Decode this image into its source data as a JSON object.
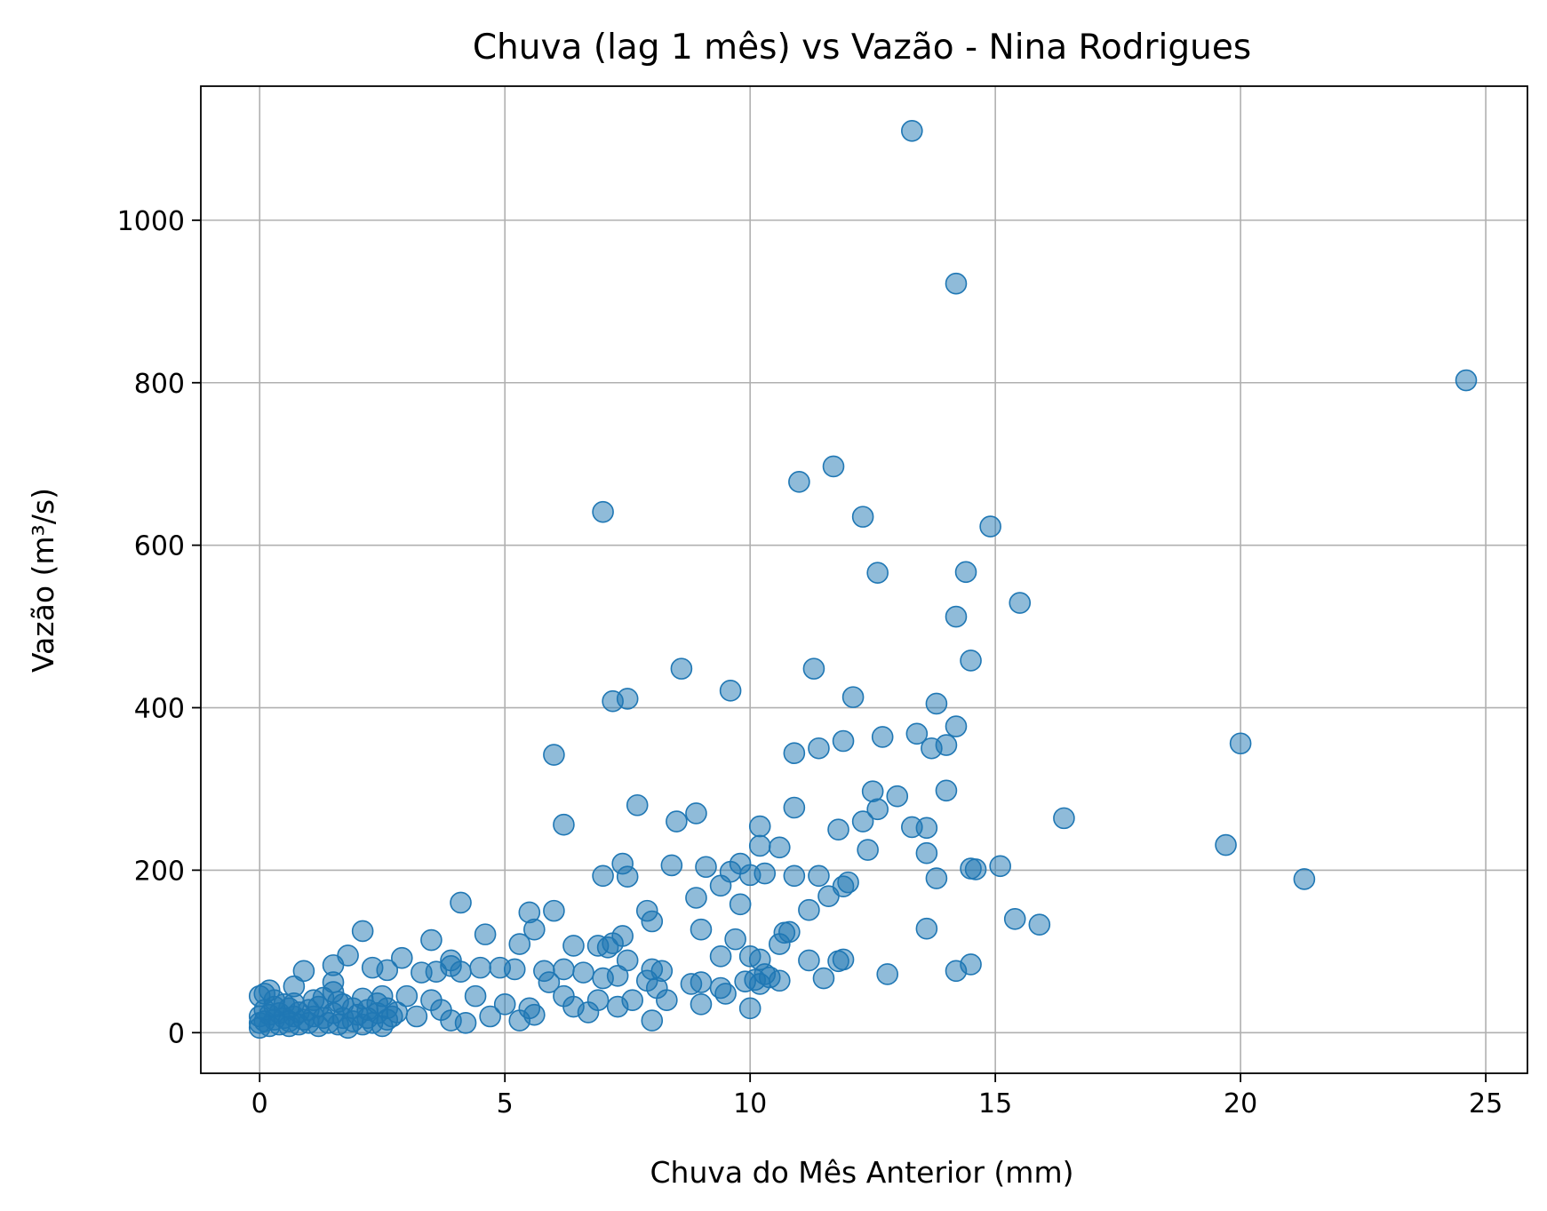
{
  "chart_data": {
    "type": "scatter",
    "title": "Chuva (lag 1 mês) vs Vazão - Nina Rodrigues",
    "xlabel": "Chuva do Mês Anterior (mm)",
    "ylabel": "Vazão (m³/s)",
    "xlim": [
      -1.2,
      25.85
    ],
    "ylim": [
      -50,
      1165
    ],
    "xticks": [
      0,
      5,
      10,
      15,
      20,
      25
    ],
    "yticks": [
      0,
      200,
      400,
      600,
      800,
      1000
    ],
    "xtick_labels": [
      "0",
      "5",
      "10",
      "15",
      "20",
      "25"
    ],
    "ytick_labels": [
      "0",
      "200",
      "400",
      "600",
      "800",
      "1000"
    ],
    "grid": true,
    "color": "#1f77b4",
    "points": [
      [
        13.3,
        1110
      ],
      [
        14.2,
        922
      ],
      [
        24.6,
        803
      ],
      [
        11.7,
        697
      ],
      [
        11.0,
        678
      ],
      [
        7.0,
        641
      ],
      [
        12.3,
        635
      ],
      [
        14.9,
        623
      ],
      [
        12.6,
        566
      ],
      [
        14.4,
        567
      ],
      [
        15.5,
        529
      ],
      [
        14.2,
        512
      ],
      [
        14.5,
        458
      ],
      [
        8.6,
        448
      ],
      [
        11.3,
        448
      ],
      [
        9.6,
        421
      ],
      [
        12.1,
        413
      ],
      [
        7.2,
        408
      ],
      [
        7.5,
        411
      ],
      [
        13.8,
        405
      ],
      [
        14.2,
        377
      ],
      [
        13.4,
        368
      ],
      [
        12.7,
        364
      ],
      [
        13.7,
        350
      ],
      [
        14.0,
        354
      ],
      [
        11.9,
        359
      ],
      [
        11.4,
        350
      ],
      [
        20.0,
        356
      ],
      [
        10.9,
        344
      ],
      [
        6.0,
        342
      ],
      [
        12.5,
        297
      ],
      [
        13.0,
        291
      ],
      [
        14.0,
        298
      ],
      [
        7.7,
        280
      ],
      [
        10.9,
        277
      ],
      [
        12.6,
        275
      ],
      [
        8.9,
        270
      ],
      [
        8.5,
        260
      ],
      [
        12.3,
        260
      ],
      [
        16.4,
        264
      ],
      [
        6.2,
        256
      ],
      [
        11.8,
        250
      ],
      [
        13.3,
        253
      ],
      [
        13.6,
        252
      ],
      [
        10.2,
        254
      ],
      [
        19.7,
        231
      ],
      [
        10.2,
        230
      ],
      [
        10.6,
        228
      ],
      [
        12.4,
        225
      ],
      [
        13.6,
        221
      ],
      [
        7.4,
        208
      ],
      [
        8.4,
        206
      ],
      [
        9.1,
        204
      ],
      [
        9.8,
        208
      ],
      [
        15.1,
        205
      ],
      [
        14.5,
        202
      ],
      [
        14.6,
        201
      ],
      [
        9.6,
        198
      ],
      [
        10.0,
        194
      ],
      [
        10.3,
        196
      ],
      [
        7.0,
        193
      ],
      [
        7.5,
        192
      ],
      [
        10.9,
        193
      ],
      [
        11.4,
        193
      ],
      [
        13.8,
        190
      ],
      [
        21.3,
        189
      ],
      [
        9.4,
        181
      ],
      [
        12.0,
        185
      ],
      [
        11.9,
        180
      ],
      [
        11.6,
        168
      ],
      [
        8.9,
        166
      ],
      [
        4.1,
        160
      ],
      [
        9.8,
        158
      ],
      [
        11.2,
        151
      ],
      [
        7.9,
        150
      ],
      [
        5.5,
        148
      ],
      [
        6.0,
        150
      ],
      [
        8.0,
        137
      ],
      [
        15.4,
        140
      ],
      [
        15.9,
        133
      ],
      [
        13.6,
        128
      ],
      [
        9.0,
        127
      ],
      [
        5.6,
        127
      ],
      [
        10.8,
        124
      ],
      [
        10.7,
        123
      ],
      [
        4.6,
        121
      ],
      [
        2.1,
        125
      ],
      [
        9.7,
        115
      ],
      [
        3.5,
        114
      ],
      [
        10.6,
        109
      ],
      [
        6.4,
        107
      ],
      [
        5.3,
        109
      ],
      [
        7.2,
        110
      ],
      [
        7.4,
        119
      ],
      [
        6.9,
        107
      ],
      [
        7.1,
        105
      ],
      [
        9.4,
        94
      ],
      [
        1.8,
        95
      ],
      [
        2.9,
        92
      ],
      [
        10.0,
        94
      ],
      [
        10.2,
        90
      ],
      [
        11.2,
        89
      ],
      [
        11.8,
        88
      ],
      [
        11.9,
        90
      ],
      [
        7.5,
        89
      ],
      [
        3.9,
        89
      ],
      [
        14.5,
        84
      ],
      [
        14.2,
        76
      ],
      [
        12.8,
        72
      ],
      [
        11.5,
        67
      ],
      [
        10.6,
        64
      ],
      [
        10.3,
        72
      ],
      [
        10.1,
        65
      ],
      [
        9.0,
        62
      ],
      [
        8.8,
        60
      ],
      [
        9.4,
        55
      ],
      [
        9.9,
        63
      ],
      [
        8.2,
        76
      ],
      [
        8.0,
        78
      ],
      [
        7.9,
        64
      ],
      [
        8.1,
        55
      ],
      [
        8.3,
        40
      ],
      [
        7.3,
        70
      ],
      [
        7.0,
        67
      ],
      [
        6.6,
        74
      ],
      [
        6.2,
        78
      ],
      [
        5.8,
        76
      ],
      [
        5.2,
        78
      ],
      [
        4.9,
        80
      ],
      [
        4.5,
        80
      ],
      [
        4.1,
        75
      ],
      [
        3.9,
        82
      ],
      [
        3.6,
        75
      ],
      [
        3.3,
        74
      ],
      [
        2.6,
        77
      ],
      [
        2.3,
        80
      ],
      [
        1.5,
        83
      ],
      [
        1.5,
        62
      ],
      [
        1.5,
        50
      ],
      [
        1.3,
        43
      ],
      [
        0.9,
        76
      ],
      [
        0.7,
        57
      ],
      [
        0.2,
        52
      ],
      [
        0.1,
        48
      ],
      [
        0.0,
        45
      ],
      [
        0.3,
        40
      ],
      [
        0.5,
        35
      ],
      [
        0.6,
        30
      ],
      [
        0.8,
        25
      ],
      [
        1.0,
        28
      ],
      [
        1.2,
        32
      ],
      [
        1.7,
        35
      ],
      [
        1.9,
        30
      ],
      [
        2.1,
        42
      ],
      [
        2.4,
        36
      ],
      [
        2.6,
        30
      ],
      [
        2.8,
        25
      ],
      [
        3.0,
        45
      ],
      [
        3.2,
        20
      ],
      [
        3.5,
        40
      ],
      [
        3.7,
        28
      ],
      [
        3.9,
        15
      ],
      [
        4.2,
        12
      ],
      [
        4.4,
        45
      ],
      [
        4.7,
        20
      ],
      [
        5.0,
        35
      ],
      [
        5.3,
        15
      ],
      [
        5.6,
        22
      ],
      [
        5.5,
        30
      ],
      [
        5.9,
        62
      ],
      [
        6.2,
        45
      ],
      [
        6.4,
        32
      ],
      [
        6.7,
        25
      ],
      [
        6.9,
        40
      ],
      [
        7.3,
        32
      ],
      [
        7.6,
        40
      ],
      [
        8.0,
        15
      ],
      [
        9.0,
        35
      ],
      [
        9.5,
        48
      ],
      [
        10.0,
        30
      ],
      [
        10.2,
        60
      ],
      [
        10.4,
        68
      ],
      [
        0.0,
        20
      ],
      [
        0.0,
        12
      ],
      [
        0.0,
        6
      ],
      [
        0.1,
        28
      ],
      [
        0.1,
        14
      ],
      [
        0.2,
        8
      ],
      [
        0.2,
        22
      ],
      [
        0.3,
        16
      ],
      [
        0.4,
        10
      ],
      [
        0.4,
        24
      ],
      [
        0.5,
        18
      ],
      [
        0.6,
        8
      ],
      [
        0.6,
        14
      ],
      [
        0.7,
        20
      ],
      [
        0.8,
        10
      ],
      [
        0.9,
        16
      ],
      [
        1.0,
        12
      ],
      [
        1.1,
        20
      ],
      [
        1.2,
        8
      ],
      [
        1.3,
        18
      ],
      [
        1.4,
        12
      ],
      [
        1.5,
        24
      ],
      [
        1.6,
        10
      ],
      [
        1.7,
        18
      ],
      [
        1.8,
        6
      ],
      [
        1.9,
        14
      ],
      [
        2.0,
        22
      ],
      [
        2.1,
        10
      ],
      [
        2.2,
        18
      ],
      [
        2.3,
        12
      ],
      [
        2.4,
        24
      ],
      [
        2.5,
        8
      ],
      [
        2.6,
        16
      ],
      [
        2.7,
        20
      ],
      [
        0.3,
        32
      ],
      [
        0.7,
        36
      ],
      [
        1.1,
        40
      ],
      [
        1.6,
        38
      ],
      [
        2.2,
        28
      ],
      [
        2.5,
        45
      ]
    ]
  }
}
